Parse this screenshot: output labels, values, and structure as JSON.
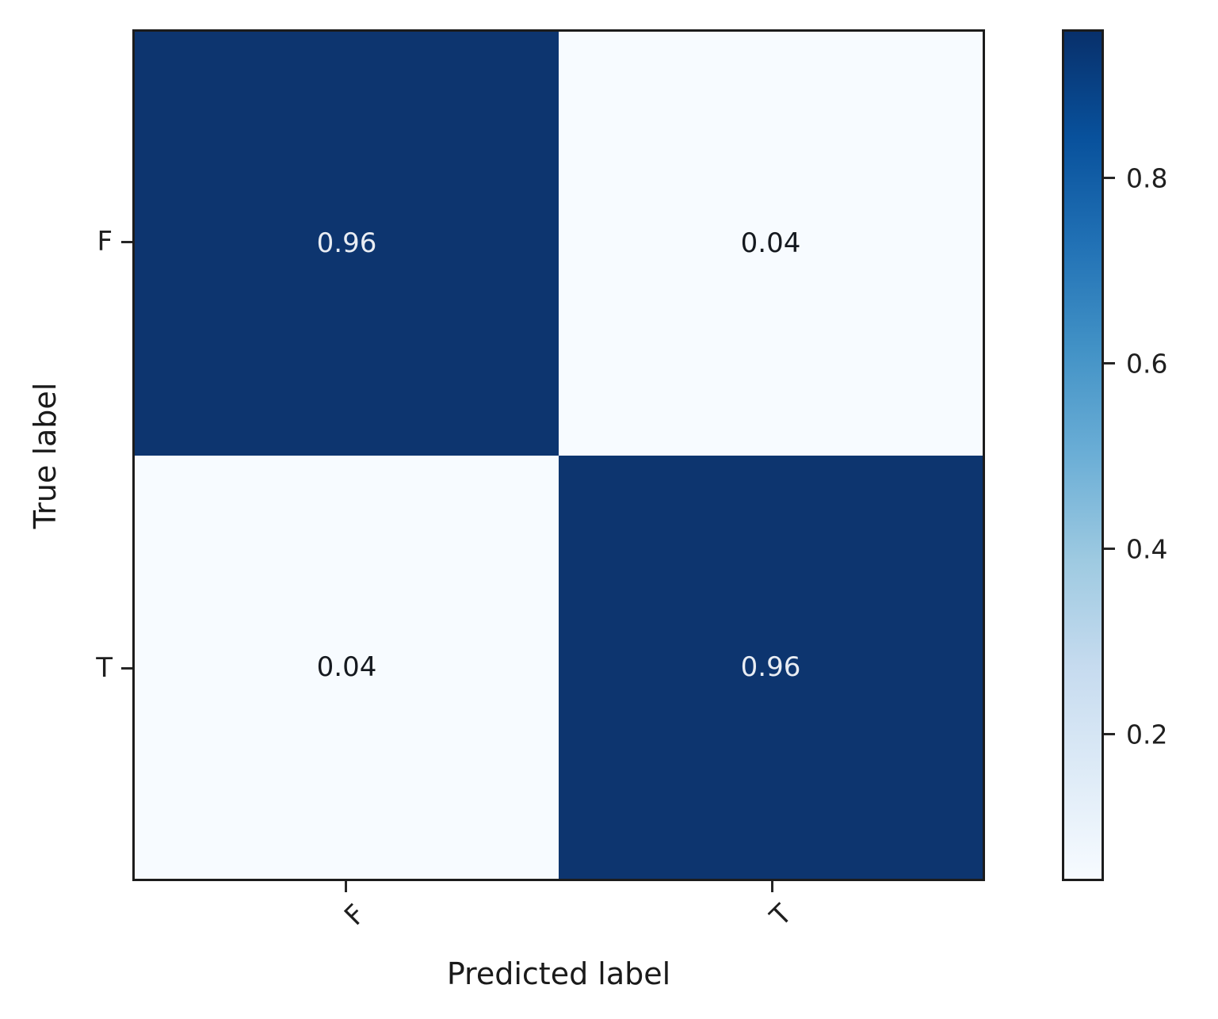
{
  "chart_data": {
    "type": "heatmap",
    "subtype": "confusion-matrix",
    "title": "",
    "xlabel": "Predicted label",
    "ylabel": "True label",
    "x_categories": [
      "F",
      "T"
    ],
    "y_categories": [
      "F",
      "T"
    ],
    "matrix": [
      [
        0.96,
        0.04
      ],
      [
        0.04,
        0.96
      ]
    ],
    "cell_labels": [
      [
        "0.96",
        "0.04"
      ],
      [
        "0.04",
        "0.96"
      ]
    ],
    "colormap": "Blues",
    "value_range": [
      0.04,
      0.96
    ],
    "colorbar_ticks": [
      "0.8",
      "0.6",
      "0.4",
      "0.2"
    ],
    "colorbar_tick_values": [
      0.8,
      0.6,
      0.4,
      0.2
    ],
    "legend_position": "right",
    "grid": false,
    "colors": {
      "dark_cell": "#0d356f",
      "light_cell": "#f7fbff",
      "text_on_dark": "#e9edf3",
      "text_on_light": "#15191f",
      "axis_text": "#1f1f1f",
      "spine": "#1c1c1c"
    },
    "colorbar_gradient_top_to_bottom": [
      "#08306b",
      "#08519c",
      "#2171b5",
      "#4292c6",
      "#6baed6",
      "#9ecae1",
      "#c6dbef",
      "#deebf7",
      "#f7fbff"
    ]
  }
}
